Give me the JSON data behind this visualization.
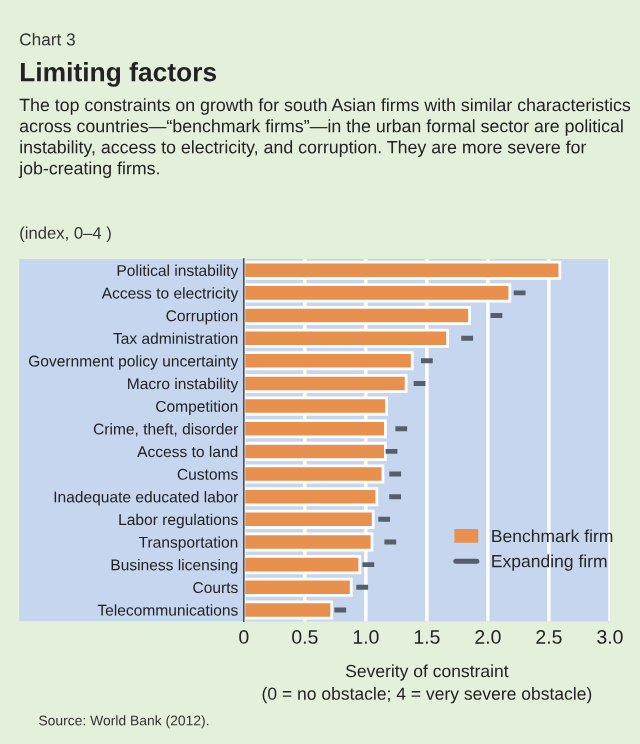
{
  "chart_data": {
    "type": "bar",
    "orientation": "horizontal",
    "title": "Limiting factors",
    "subtitle": "The top constraints on growth for south Asian firms with similar characteristics across countries—“benchmark firms”—in the urban formal sector are political instability, access to electricity, and corruption. They are more severe for job-creating firms.",
    "annotations": [
      "Chart 3",
      "(index, 0–4 )",
      "Source: World Bank (2012)."
    ],
    "xlabel": "Severity of constraint\n(0 = no obstacle; 4 = very severe obstacle)",
    "categories": [
      "Political instability",
      "Access to electricity",
      "Corruption",
      "Tax administration",
      "Government policy uncertainty",
      "Macro instability",
      "Competition",
      "Crime, theft, disorder",
      "Access to land",
      "Customs",
      "Inadequate educated labor",
      "Labor regulations",
      "Transportation",
      "Business licensing",
      "Courts",
      "Telecommunications"
    ],
    "series": [
      {
        "name": "Benchmark firm",
        "color": "#e8914f",
        "values": [
          2.59,
          2.18,
          1.85,
          1.67,
          1.38,
          1.33,
          1.17,
          1.16,
          1.16,
          1.14,
          1.09,
          1.06,
          1.05,
          0.95,
          0.88,
          0.72
        ]
      },
      {
        "name": "Expanding firm",
        "type": "scatter",
        "color": "#555f6b",
        "values": [
          null,
          2.26,
          2.07,
          1.83,
          1.5,
          1.44,
          null,
          1.29,
          1.21,
          1.24,
          1.24,
          1.15,
          1.2,
          1.02,
          0.97,
          0.79
        ]
      }
    ],
    "xlim": [
      0,
      3.0
    ],
    "xticks": [
      0,
      0.5,
      {
        "value": 1,
        "label": "1.0"
      },
      1.5,
      {
        "value": 2,
        "label": "2.0"
      },
      2.5,
      {
        "value": 3,
        "label": "3.0"
      }
    ],
    "grid": "x",
    "legend": "bottom right"
  }
}
